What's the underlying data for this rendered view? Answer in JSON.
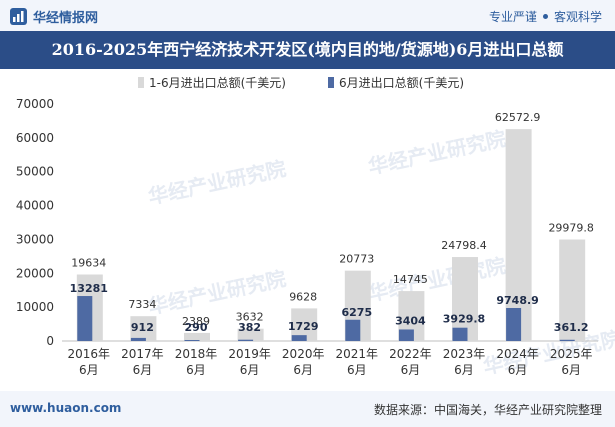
{
  "header": {
    "brand": "华经情报网",
    "slogan_left": "专业严谨",
    "slogan_right": "客观科学"
  },
  "title": "2016-2025年西宁经济技术开发区(境内目的地/货源地)6月进出口总额",
  "footer": {
    "website": "www.huaon.com",
    "source": "数据来源：中国海关，华经产业研究院整理"
  },
  "watermark": "华经产业研究院",
  "colors": {
    "series1": "#d9d9d9",
    "series2": "#4e6aa3",
    "brand": "#2f5e9e",
    "title_bg": "#2b4d87"
  },
  "chart_data": {
    "type": "bar",
    "categories": [
      "2016年\n6月",
      "2017年\n6月",
      "2018年\n6月",
      "2019年\n6月",
      "2020年\n6月",
      "2021年\n6月",
      "2022年\n6月",
      "2023年\n6月",
      "2024年\n6月",
      "2025年\n6月"
    ],
    "series": [
      {
        "name": "1-6月进出口总额(千美元)",
        "values": [
          19634,
          7334,
          2389,
          3632,
          9628,
          20773,
          14745,
          24798.4,
          62572.9,
          29979.8
        ],
        "labels": [
          "19634",
          "7334",
          "2389",
          "3632",
          "9628",
          "20773",
          "14745",
          "24798.4",
          "62572.9",
          "29979.8"
        ]
      },
      {
        "name": "6月进出口总额(千美元)",
        "values": [
          13281,
          912,
          290,
          382,
          1729,
          6275,
          3404,
          3929.8,
          9748.9,
          361.2
        ],
        "labels": [
          "13281",
          "912",
          "290",
          "382",
          "1729",
          "6275",
          "3404",
          "3929.8",
          "9748.9",
          "361.2"
        ]
      }
    ],
    "ylim": [
      0,
      70000
    ],
    "yticks": [
      "0",
      "10000",
      "20000",
      "30000",
      "40000",
      "50000",
      "60000",
      "70000"
    ],
    "legend": "top-center",
    "grid": false
  }
}
